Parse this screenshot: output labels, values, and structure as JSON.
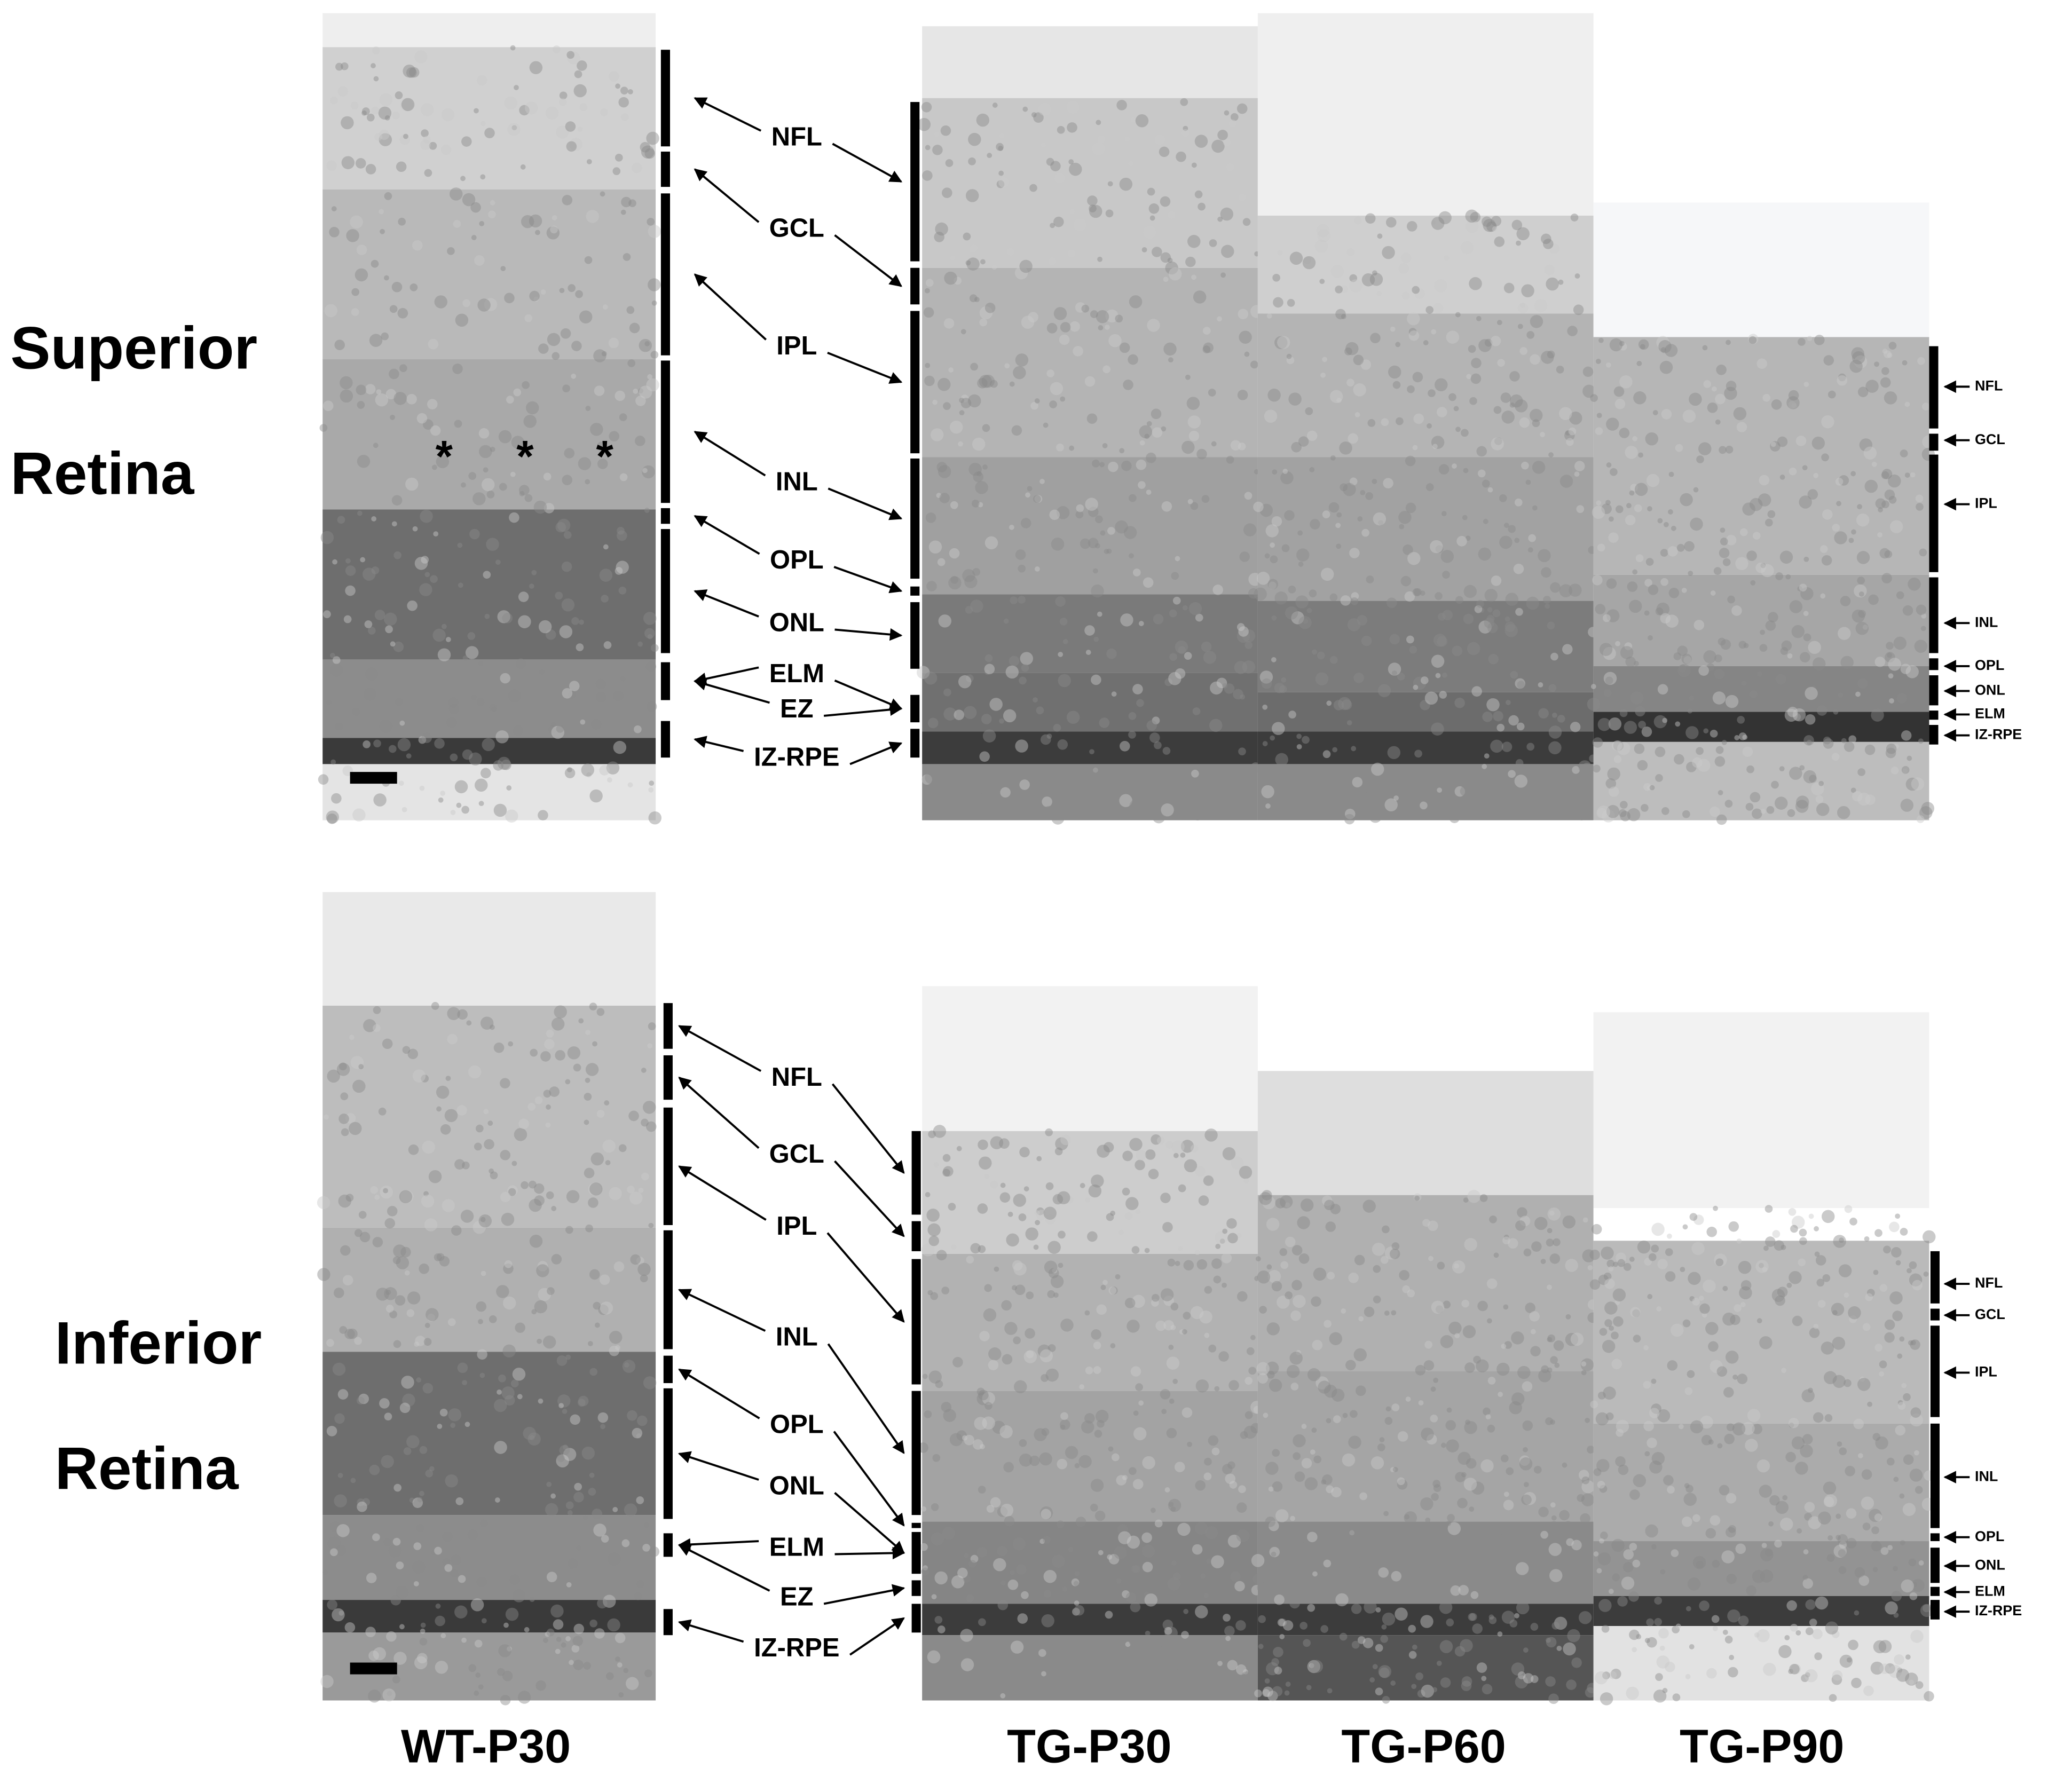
{
  "row_labels": [
    {
      "line1": "Superior",
      "line2": "Retina"
    },
    {
      "line1": "Inferior",
      "line2": "Retina"
    }
  ],
  "column_labels": [
    "WT-P30",
    "TG-P30",
    "TG-P60",
    "TG-P90"
  ],
  "superior": {
    "layer_labels": [
      "NFL",
      "GCL",
      "IPL",
      "INL",
      "OPL",
      "ONL",
      "ELM",
      "EZ",
      "IZ-RPE"
    ],
    "tg_p90_layer_labels": [
      "NFL",
      "GCL",
      "IPL",
      "INL",
      "OPL",
      "ONL",
      "ELM",
      "IZ-RPE"
    ],
    "asterisks": [
      "*",
      "*",
      "*"
    ]
  },
  "inferior": {
    "layer_labels": [
      "NFL",
      "GCL",
      "IPL",
      "INL",
      "OPL",
      "ONL",
      "ELM",
      "EZ",
      "IZ-RPE"
    ],
    "tg_p90_layer_labels": [
      "NFL",
      "GCL",
      "IPL",
      "INL",
      "OPL",
      "ONL",
      "ELM",
      "IZ-RPE"
    ]
  }
}
